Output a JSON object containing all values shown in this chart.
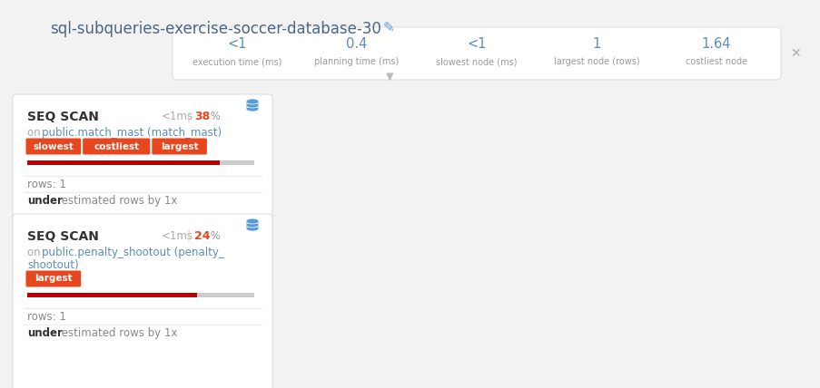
{
  "title": "sql-subqueries-exercise-soccer-database-30",
  "bg_color": "#f2f2f2",
  "stats": [
    {
      "value": "<1",
      "label": "execution time (ms)"
    },
    {
      "value": "0.4",
      "label": "planning time (ms)"
    },
    {
      "value": "<1",
      "label": "slowest node (ms)"
    },
    {
      "value": "1",
      "label": "largest node (rows)"
    },
    {
      "value": "1.64",
      "label": "costliest node"
    }
  ],
  "nodes": [
    {
      "title": "SEQ SCAN",
      "time": "<1ms",
      "percent": "38",
      "subtitle_gray": "on ",
      "subtitle_blue": "public.match_mast (match_mast)",
      "subtitle2": "",
      "tags": [
        "slowest",
        "costliest",
        "largest"
      ],
      "bar_fill": 0.85,
      "rows": "rows: 1",
      "under_rest": " estimated rows by 1x"
    },
    {
      "title": "SEQ SCAN",
      "time": "<1ms",
      "percent": "24",
      "subtitle_gray": "on ",
      "subtitle_blue": "public.penalty_shootout (penalty_",
      "subtitle2": "shootout)",
      "tags": [
        "largest"
      ],
      "bar_fill": 0.75,
      "rows": "rows: 1",
      "under_rest": " estimated rows by 1x"
    }
  ],
  "tag_color": "#e8461e",
  "tag_text_color": "#ffffff",
  "bar_red": "#bb0000",
  "bar_gray": "#cccccc",
  "close_color": "#aaaaaa",
  "title_color": "#4a6785",
  "stats_value_color": "#5b8db8",
  "stats_label_color": "#999999",
  "node_title_color": "#333333",
  "node_subtitle_gray": "#aaaaaa",
  "node_subtitle_color": "#5b8db8",
  "node_time_color": "#aaaaaa",
  "node_percent_color": "#e8461e",
  "rows_color": "#888888",
  "sep_color": "#eeeeee",
  "connector_color": "#cccccc",
  "stats_box_edge": "#e0e0e0",
  "db_icon_color": "#5b9bd5"
}
